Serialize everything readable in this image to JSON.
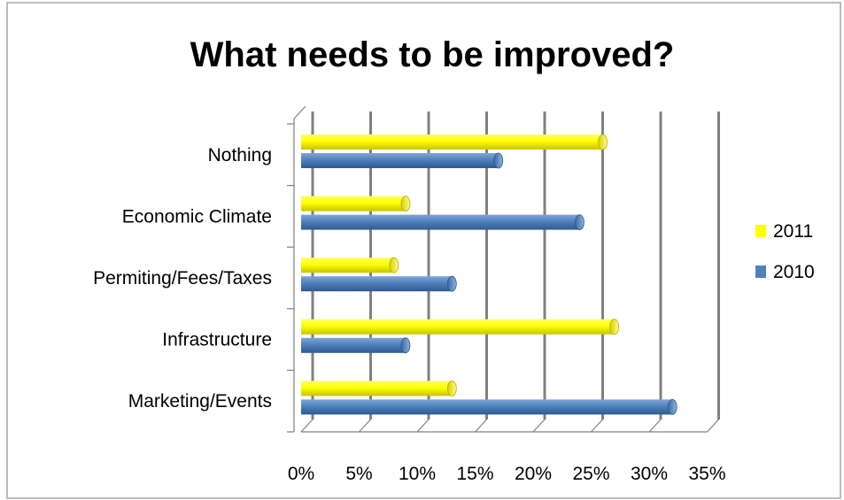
{
  "chart_data": {
    "type": "bar",
    "orientation": "horizontal",
    "style": "3d-cylinder",
    "title": "What needs to be improved?",
    "xlabel": "",
    "ylabel": "",
    "categories": [
      "Nothing",
      "Economic Climate",
      "Permiting/Fees/Taxes",
      "Infrastructure",
      "Marketing/Events"
    ],
    "series": [
      {
        "name": "2011",
        "color": "#ffff00",
        "values": [
          26,
          9,
          8,
          27,
          13
        ]
      },
      {
        "name": "2010",
        "color": "#4f81bd",
        "values": [
          17,
          24,
          13,
          9,
          32
        ]
      }
    ],
    "xlim": [
      0,
      35
    ],
    "x_ticks": [
      "0%",
      "5%",
      "10%",
      "15%",
      "20%",
      "25%",
      "30%",
      "35%"
    ],
    "grid": true,
    "legend_position": "right",
    "legend": [
      "2011",
      "2010"
    ]
  }
}
